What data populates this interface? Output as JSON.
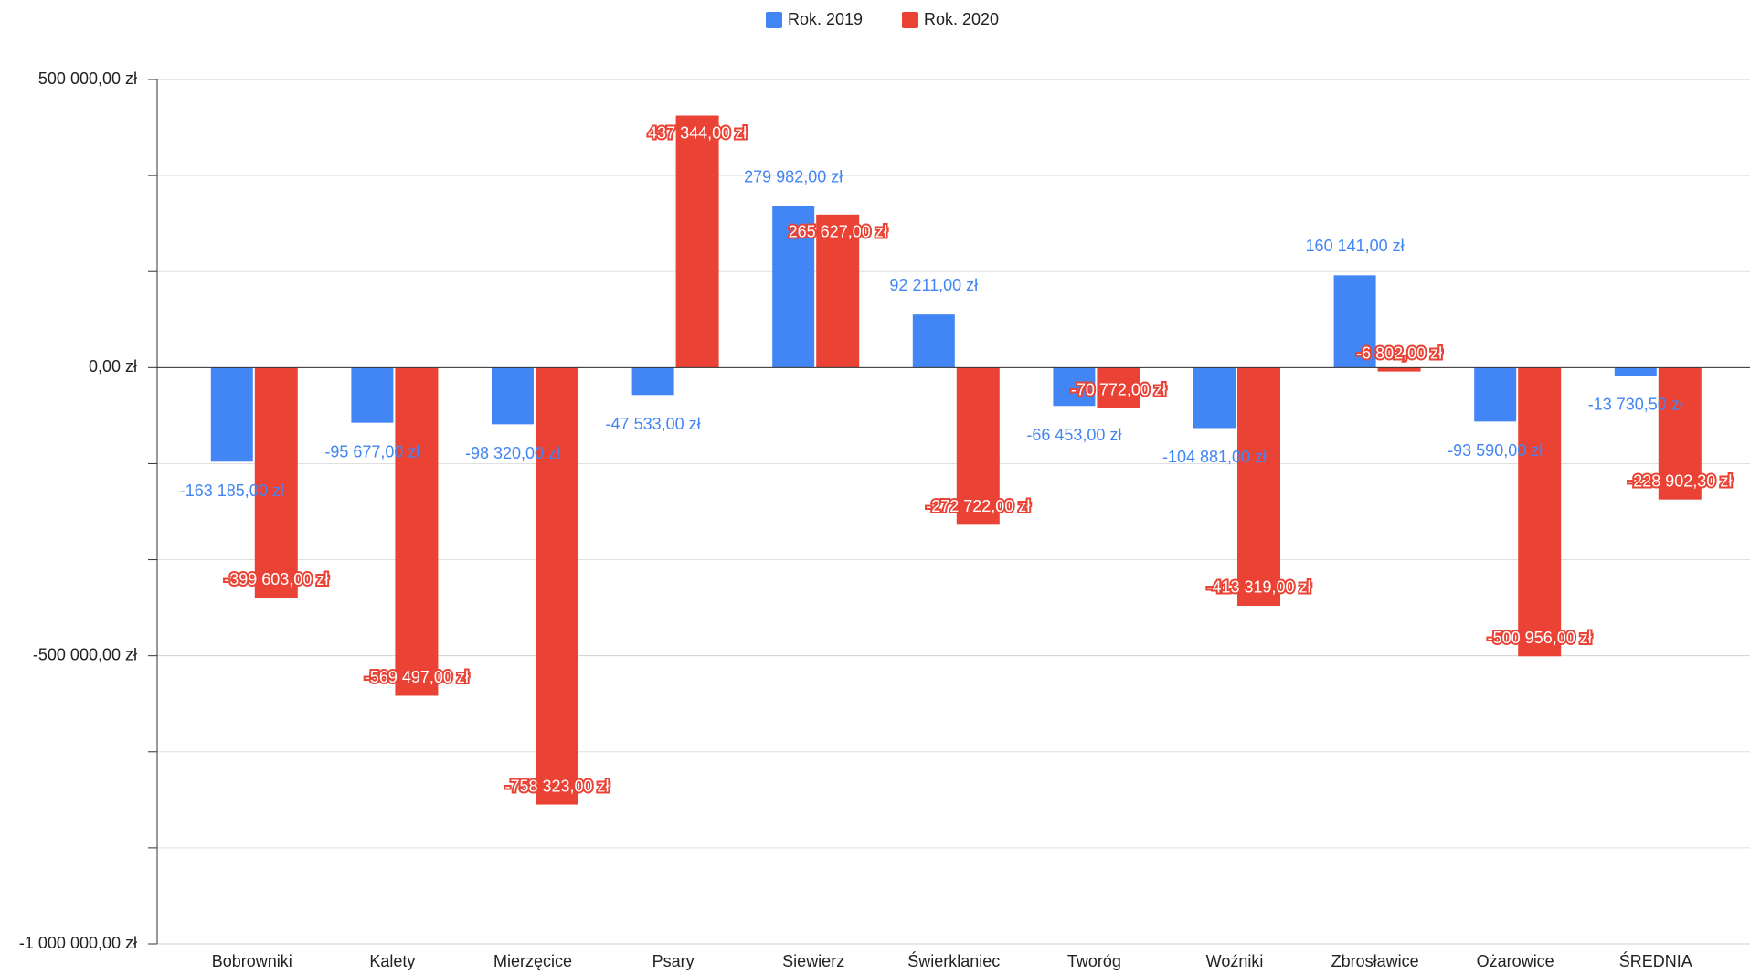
{
  "chart_data": {
    "type": "bar",
    "categories": [
      "Bobrowniki",
      "Kalety",
      "Mierzęcice",
      "Psary",
      "Siewierz",
      "Świerklaniec",
      "Tworóg",
      "Woźniki",
      "Zbrosławice",
      "Ożarowice",
      "ŚREDNIA"
    ],
    "series": [
      {
        "name": "Rok. 2019",
        "color": "#4285f4",
        "values": [
          -163185,
          -95677,
          -98320,
          -47533,
          279982,
          92211,
          -66453,
          -104881,
          160141,
          -93590,
          -13730.5
        ],
        "value_labels": [
          "-163 185,00 zł",
          "-95 677,00 zł",
          "-98 320,00 zł",
          "-47 533,00 zł",
          "279 982,00 zł",
          "92 211,00 zł",
          "-66 453,00 zł",
          "-104 881,00 zł",
          "160 141,00 zł",
          "-93 590,00 zł",
          "-13 730,50 zł"
        ]
      },
      {
        "name": "Rok. 2020",
        "color": "#ea4335",
        "values": [
          -399603,
          -569497,
          -758323,
          437344,
          265627,
          -272722,
          -70772,
          -413319,
          -6802,
          -500956,
          -228902.3
        ],
        "value_labels": [
          "-399 603,00 zł",
          "-569 497,00 zł",
          "-758 323,00 zł",
          "437 344,00 zł",
          "265 627,00 zł",
          "-272 722,00 zł",
          "-70 772,00 zł",
          "-413 319,00 zł",
          "-6 802,00 zł",
          "-500 956,00 zł",
          "-228 902,30 zł"
        ]
      }
    ],
    "ylim": [
      -1000000,
      500000
    ],
    "yticks": [
      {
        "value": 500000,
        "label": "500 000,00 zł"
      },
      {
        "value": 0,
        "label": "0,00 zł"
      },
      {
        "value": -500000,
        "label": "-500 000,00 zł"
      },
      {
        "value": -1000000,
        "label": "-1 000 000,00 zł"
      }
    ],
    "y_minor_divisions": 3,
    "grid": true,
    "legend": "top"
  }
}
